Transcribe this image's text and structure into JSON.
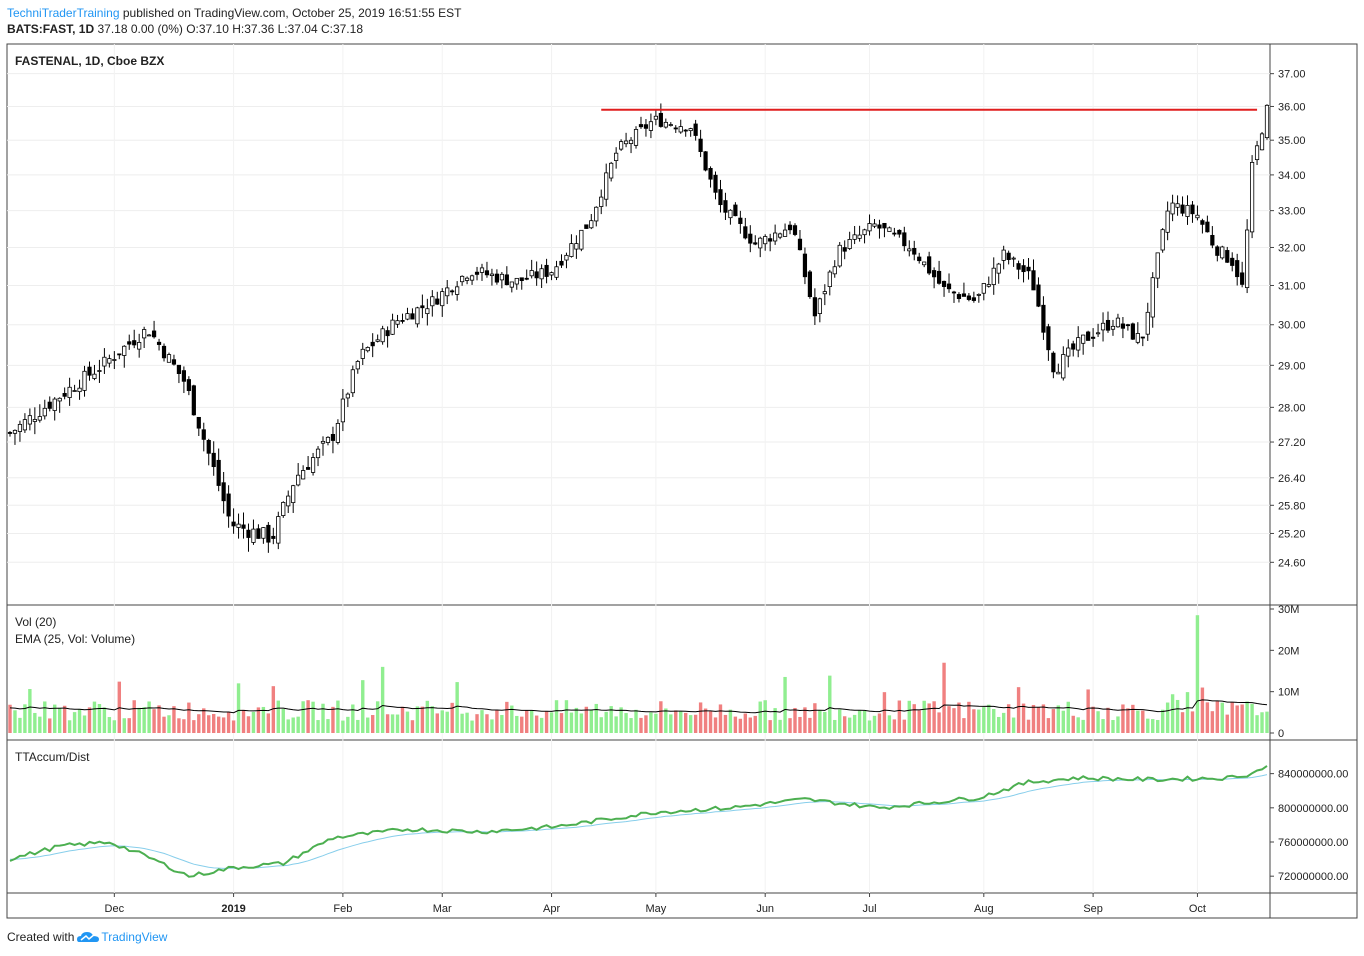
{
  "header": {
    "publisher": "TechniTraderTraining",
    "published_text": "published on TradingView.com, October 25, 2019 16:51:55 EST",
    "symbol_line": "BATS:FAST, 1D",
    "ohlc_text": "37.18 0.00 (0%) O:37.10 H:37.36 L:37.04 C:37.18"
  },
  "footer": {
    "created_with": "Created with",
    "brand": "TradingView"
  },
  "chart_data": [
    {
      "type": "candlestick",
      "title": "FASTENAL, 1D, Cboe BZX",
      "y_ticks": [
        "37.00",
        "36.00",
        "35.00",
        "34.00",
        "33.00",
        "32.00",
        "31.00",
        "30.00",
        "29.00",
        "28.00",
        "27.20",
        "26.40",
        "25.80",
        "25.20",
        "24.60"
      ],
      "ylim": [
        24.3,
        37.3
      ],
      "scale": "log",
      "x_ticks": [
        "Dec",
        "2019",
        "Feb",
        "Mar",
        "Apr",
        "May",
        "Jun",
        "Jul",
        "Aug",
        "Sep",
        "Oct"
      ],
      "resistance_line": {
        "value": 35.9,
        "from_bar": 119,
        "to_bar": 251,
        "color": "#e01e1e"
      },
      "colors": {
        "up_body": "#ffffff",
        "down_body": "#000000",
        "wick": "#000000"
      },
      "grid": true
    },
    {
      "type": "bar",
      "labels": [
        "Vol (20)",
        "EMA (25, Vol: Volume)"
      ],
      "y_ticks": [
        "30M",
        "20M",
        "10M",
        "0"
      ],
      "ylim": [
        0,
        30
      ],
      "unit": "M",
      "colors": {
        "up": "#90ee90",
        "down": "#f08080",
        "ema": "#000000"
      }
    },
    {
      "type": "line",
      "title": "TTAccum/Dist",
      "y_ticks": [
        "840000000.00",
        "800000000.00",
        "760000000.00",
        "720000000.00"
      ],
      "ylim": [
        705000000,
        870000000
      ],
      "colors": {
        "main": "#4caf50",
        "signal": "#87ceeb"
      }
    }
  ]
}
